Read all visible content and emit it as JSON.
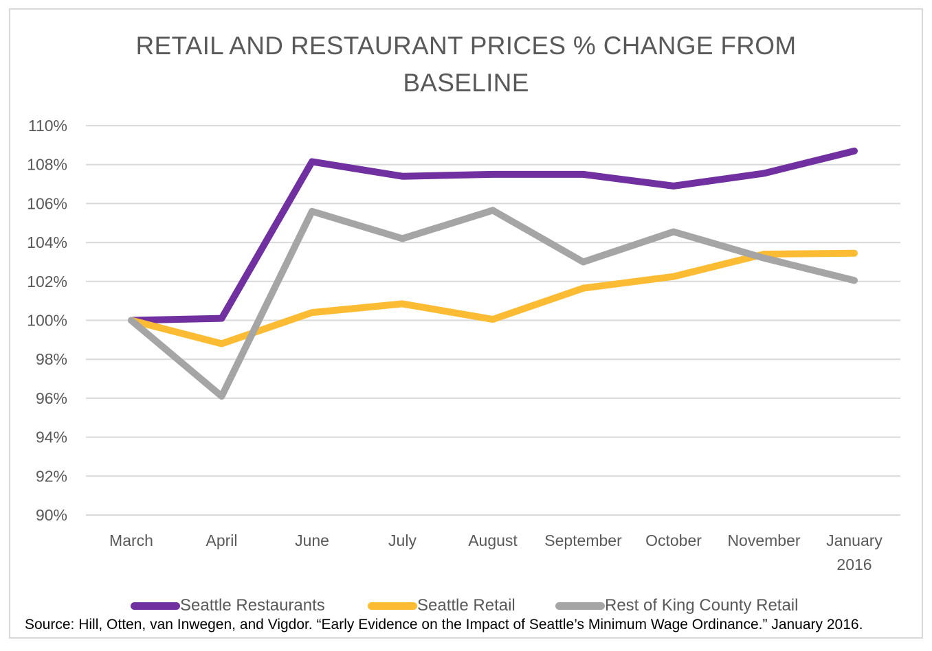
{
  "chart_data": {
    "type": "line",
    "title": "RETAIL AND RESTAURANT PRICES % CHANGE FROM BASELINE",
    "title_lines": [
      "RETAIL AND RESTAURANT PRICES % CHANGE FROM",
      "BASELINE"
    ],
    "xlabel": "",
    "ylabel": "",
    "categories": [
      "March",
      "April",
      "June",
      "July",
      "August",
      "September",
      "October",
      "November",
      "January 2016"
    ],
    "category_lines": [
      [
        "March"
      ],
      [
        "April"
      ],
      [
        "June"
      ],
      [
        "July"
      ],
      [
        "August"
      ],
      [
        "September"
      ],
      [
        "October"
      ],
      [
        "November"
      ],
      [
        "January",
        "2016"
      ]
    ],
    "ylim": [
      90,
      110
    ],
    "yticks": [
      90,
      92,
      94,
      96,
      98,
      100,
      102,
      104,
      106,
      108,
      110
    ],
    "ytick_labels": [
      "90%",
      "92%",
      "94%",
      "96%",
      "98%",
      "100%",
      "102%",
      "104%",
      "106%",
      "108%",
      "110%"
    ],
    "grid": true,
    "legend_position": "bottom",
    "series": [
      {
        "name": "Seattle Restaurants",
        "color": "#7030a0",
        "values": [
          100.0,
          100.1,
          108.15,
          107.4,
          107.5,
          107.5,
          106.9,
          107.55,
          108.7
        ]
      },
      {
        "name": "Seattle Retail",
        "color": "#fbbc33",
        "values": [
          100.0,
          98.8,
          100.4,
          100.85,
          100.05,
          101.65,
          102.25,
          103.4,
          103.45
        ]
      },
      {
        "name": "Rest of King County Retail",
        "color": "#a5a5a5",
        "values": [
          100.0,
          96.1,
          105.6,
          104.2,
          105.65,
          103.0,
          104.55,
          103.2,
          102.05
        ]
      }
    ]
  },
  "legend": {
    "items": [
      "Seattle Restaurants",
      "Seattle Retail",
      "Rest of King County Retail"
    ]
  },
  "source": {
    "text": "Source: Hill, Otten, van Inwegen, and Vigdor. “Early Evidence on the Impact of Seattle’s Minimum Wage Ordinance.” January 2016."
  },
  "colors": {
    "gridline": "#d9d9d9",
    "axis_text": "#595959",
    "frame": "#d9d9d9"
  }
}
